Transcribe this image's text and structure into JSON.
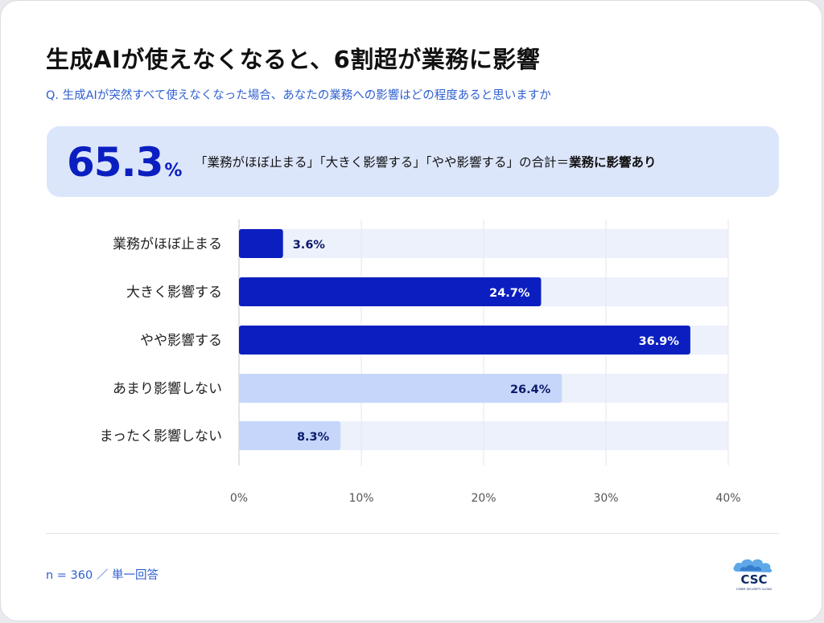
{
  "header": {
    "title": "生成AIが使えなくなると、6割超が業務に影響",
    "question": "Q. 生成AIが突然すべて使えなくなった場合、あなたの業務への影響はどの程度あると思いますか"
  },
  "highlight": {
    "value": "65.3",
    "unit": "%",
    "summary_prefix": "「業務がほぼ止まる」「大きく影響する」「やや影響する」の合計＝",
    "summary_bold": "業務に影響あり"
  },
  "chart_data": {
    "type": "bar",
    "orientation": "horizontal",
    "categories": [
      "業務がほぼ止まる",
      "大きく影響する",
      "やや影響する",
      "あまり影響しない",
      "まったく影響しない"
    ],
    "values": [
      3.6,
      24.7,
      36.9,
      26.4,
      8.3
    ],
    "value_labels": [
      "3.6%",
      "24.7%",
      "36.9%",
      "26.4%",
      "8.3%"
    ],
    "xlim": [
      0,
      40
    ],
    "xticks": [
      "0%",
      "10%",
      "20%",
      "30%",
      "40%"
    ],
    "grid": true,
    "colors": {
      "impact": "#0b1fc0",
      "no_impact": "#c5d6fa",
      "track": "#edf1fb",
      "label_light": "#ffffff",
      "label_dark": "#0b1a6a"
    },
    "bar_groups": [
      "impact",
      "impact",
      "impact",
      "no_impact",
      "no_impact"
    ]
  },
  "footer": {
    "note": "n = 360 ／ 単一回答",
    "logo_text": "CSC",
    "logo_subtext": "CYBER SECURITY CLOUD"
  }
}
